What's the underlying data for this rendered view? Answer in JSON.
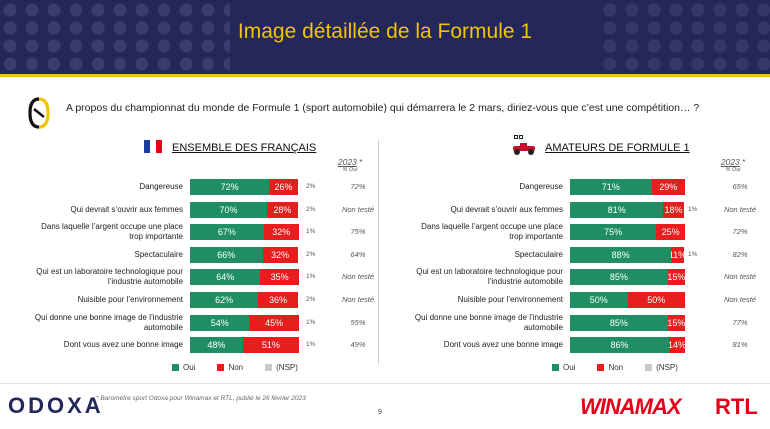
{
  "title": "Image détaillée de la Formule 1",
  "question": "A propos du championnat du monde de Formule 1 (sport automobile) qui démarrera le 2 mars, diriez-vous que c’est une compétition… ?",
  "footnote": "* Baromètre sport Odoxa pour Winamax et RTL, publié le 26 février 2023",
  "page_number": "9",
  "logos": {
    "odoxa": "ODOXA",
    "winamax": "WINAMAX",
    "rtl": "RTL"
  },
  "colors": {
    "oui": "#1f8f63",
    "non": "#e81d1d",
    "nsp": "#c9c9c9",
    "header": "#23275a",
    "accent": "#f2c300"
  },
  "legend": {
    "oui": "Oui",
    "non": "Non",
    "nsp": "(NSP)"
  },
  "year_header": {
    "year": "2023",
    "star": "*",
    "sub": "% Oui"
  },
  "chart_data": [
    {
      "type": "bar",
      "stacked": true,
      "orientation": "horizontal",
      "title": "ENSEMBLE DES FRANÇAIS",
      "categories": [
        "Dangereuse",
        "Qui devrait s’ouvrir aux femmes",
        "Dans laquelle l’argent occupe une place trop importante",
        "Spectaculaire",
        "Qui est un laboratoire technologique pour l’industrie automobile",
        "Nuisible pour l’environnement",
        "Qui donne une bonne image de l’industrie automobile",
        "Dont vous avez une bonne image"
      ],
      "series": [
        {
          "name": "Oui",
          "values": [
            72,
            70,
            67,
            66,
            64,
            62,
            54,
            48
          ]
        },
        {
          "name": "Non",
          "values": [
            26,
            28,
            32,
            32,
            35,
            36,
            45,
            51
          ]
        },
        {
          "name": "(NSP)",
          "values": [
            2,
            2,
            1,
            2,
            1,
            2,
            1,
            1
          ]
        }
      ],
      "labels": {
        "oui": [
          "72%",
          "70%",
          "67%",
          "66%",
          "64%",
          "62%",
          "54%",
          "48%"
        ],
        "non": [
          "26%",
          "28%",
          "32%",
          "32%",
          "35%",
          "36%",
          "45%",
          "51%"
        ],
        "nsp": [
          "2%",
          "2%",
          "1%",
          "2%",
          "1%",
          "2%",
          "1%",
          "1%"
        ]
      },
      "y2023": [
        "72%",
        "Non testé",
        "75%",
        "64%",
        "Non testé",
        "Non testé",
        "55%",
        "49%"
      ]
    },
    {
      "type": "bar",
      "stacked": true,
      "orientation": "horizontal",
      "title": "AMATEURS DE FORMULE 1",
      "categories": [
        "Dangereuse",
        "Qui devrait s’ouvrir aux femmes",
        "Dans laquelle l’argent occupe une place trop importante",
        "Spectaculaire",
        "Qui est un laboratoire technologique pour l’industrie automobile",
        "Nuisible pour l’environnement",
        "Qui donne une bonne image de l’industrie automobile",
        "Dont vous avez une bonne image"
      ],
      "series": [
        {
          "name": "Oui",
          "values": [
            71,
            81,
            75,
            88,
            85,
            50,
            85,
            86
          ]
        },
        {
          "name": "Non",
          "values": [
            29,
            18,
            25,
            11,
            15,
            50,
            15,
            14
          ]
        },
        {
          "name": "(NSP)",
          "values": [
            0,
            1,
            0,
            1,
            0,
            0,
            0,
            0
          ]
        }
      ],
      "labels": {
        "oui": [
          "71%",
          "81%",
          "75%",
          "88%",
          "85%",
          "50%",
          "85%",
          "86%"
        ],
        "non": [
          "29%",
          "18%",
          "25%",
          "11%",
          "15%",
          "50%",
          "15%",
          "14%"
        ],
        "nsp": [
          "",
          "1%",
          "",
          "1%",
          "",
          "",
          "",
          ""
        ]
      },
      "y2023": [
        "65%",
        "Non testé",
        "72%",
        "82%",
        "Non testé",
        "Non testé",
        "77%",
        "81%"
      ]
    }
  ]
}
